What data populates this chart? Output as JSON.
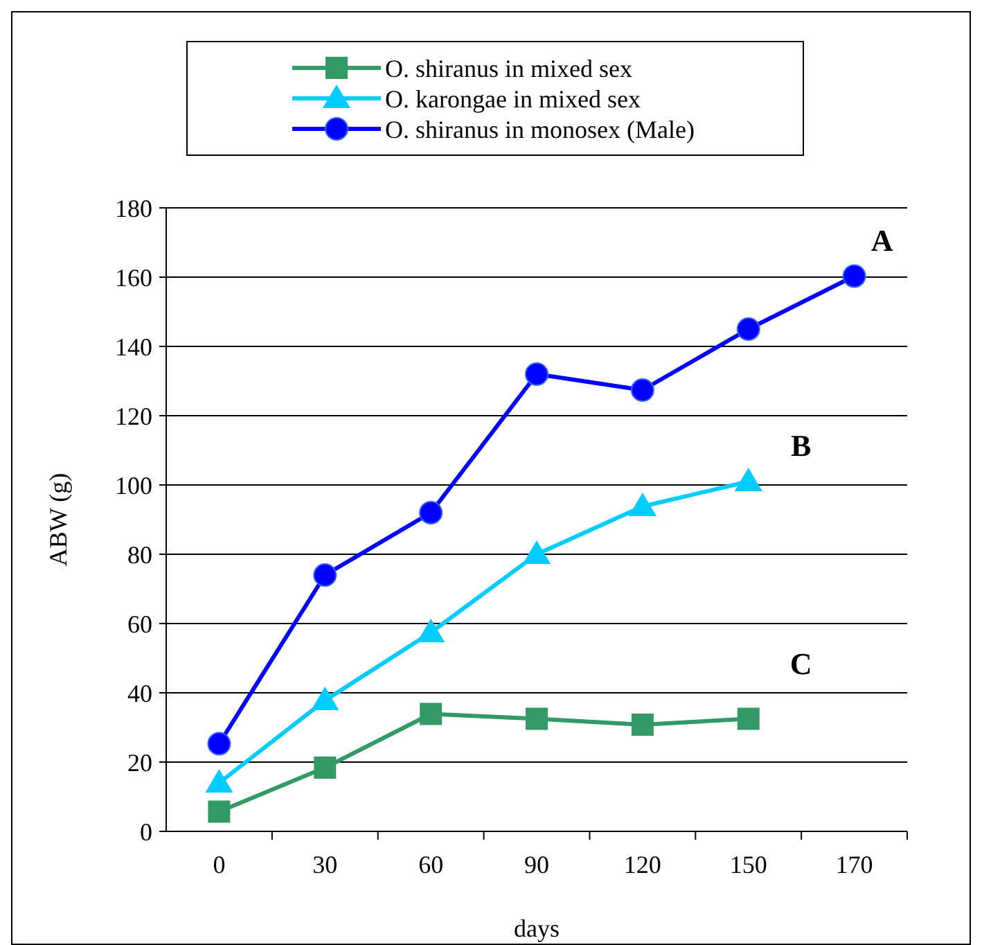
{
  "chart_data": {
    "type": "line",
    "xlabel": "days",
    "ylabel": "ABW (g)",
    "categories": [
      "0",
      "30",
      "60",
      "90",
      "120",
      "150",
      "170"
    ],
    "ylim": [
      0,
      180
    ],
    "yticks": [
      0,
      20,
      40,
      60,
      80,
      100,
      120,
      140,
      160,
      180
    ],
    "grid": "y",
    "legend": "top",
    "line_style": "solid",
    "series": [
      {
        "name": "O. shiranus in mixed sex",
        "color": "#339966",
        "marker": "square",
        "values": [
          5.7,
          18.4,
          33.9,
          32.5,
          30.8,
          32.5,
          null
        ]
      },
      {
        "name": "O. karongae in mixed sex",
        "color": "#00ccff",
        "marker": "triangle",
        "values": [
          14,
          37.8,
          57.4,
          80,
          93.8,
          101,
          null
        ]
      },
      {
        "name": "O. shiranus in monosex (Male)",
        "color": "#0000ff",
        "marker": "circle",
        "values": [
          25.3,
          74,
          92,
          132,
          127.4,
          145,
          160.3
        ]
      }
    ],
    "annotations": [
      "A",
      "B",
      "C"
    ]
  }
}
